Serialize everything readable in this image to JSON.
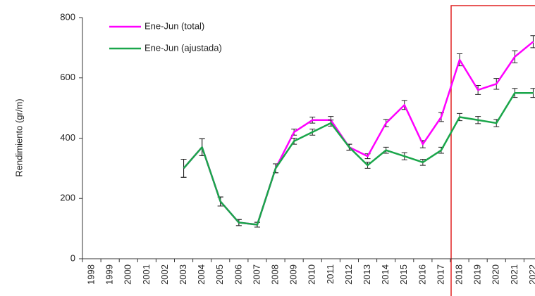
{
  "chart_data": {
    "type": "line",
    "ylabel": "Rendimiento (gr/m)",
    "categories": [
      "1998",
      "1999",
      "2000",
      "2001",
      "2002",
      "2003",
      "2004",
      "2005",
      "2006",
      "2007",
      "2008",
      "2009",
      "2010",
      "2011",
      "2012",
      "2013",
      "2014",
      "2015",
      "2016",
      "2017",
      "2018",
      "2019",
      "2020",
      "2021",
      "2022"
    ],
    "series": [
      {
        "name": "Ene-Jun (total)",
        "color": "#ff00ff",
        "values": [
          null,
          null,
          null,
          null,
          null,
          300,
          370,
          190,
          120,
          113,
          300,
          420,
          460,
          460,
          370,
          340,
          450,
          510,
          380,
          470,
          660,
          560,
          580,
          670,
          720
        ],
        "errors": [
          null,
          null,
          null,
          null,
          null,
          30,
          28,
          15,
          10,
          8,
          15,
          10,
          10,
          12,
          10,
          8,
          12,
          15,
          12,
          15,
          20,
          15,
          18,
          20,
          20
        ]
      },
      {
        "name": "Ene-Jun (ajustada)",
        "color": "#1aa64a",
        "values": [
          null,
          null,
          null,
          null,
          null,
          300,
          370,
          190,
          120,
          113,
          300,
          390,
          420,
          450,
          370,
          310,
          360,
          340,
          320,
          360,
          470,
          460,
          450,
          550,
          550
        ],
        "errors": [
          null,
          null,
          null,
          null,
          null,
          30,
          28,
          15,
          10,
          8,
          15,
          10,
          10,
          10,
          10,
          10,
          10,
          12,
          10,
          10,
          12,
          12,
          12,
          15,
          15
        ]
      }
    ],
    "ylim": [
      0,
      800
    ],
    "yticks": [
      0,
      200,
      400,
      600,
      800
    ],
    "grid": false
  }
}
